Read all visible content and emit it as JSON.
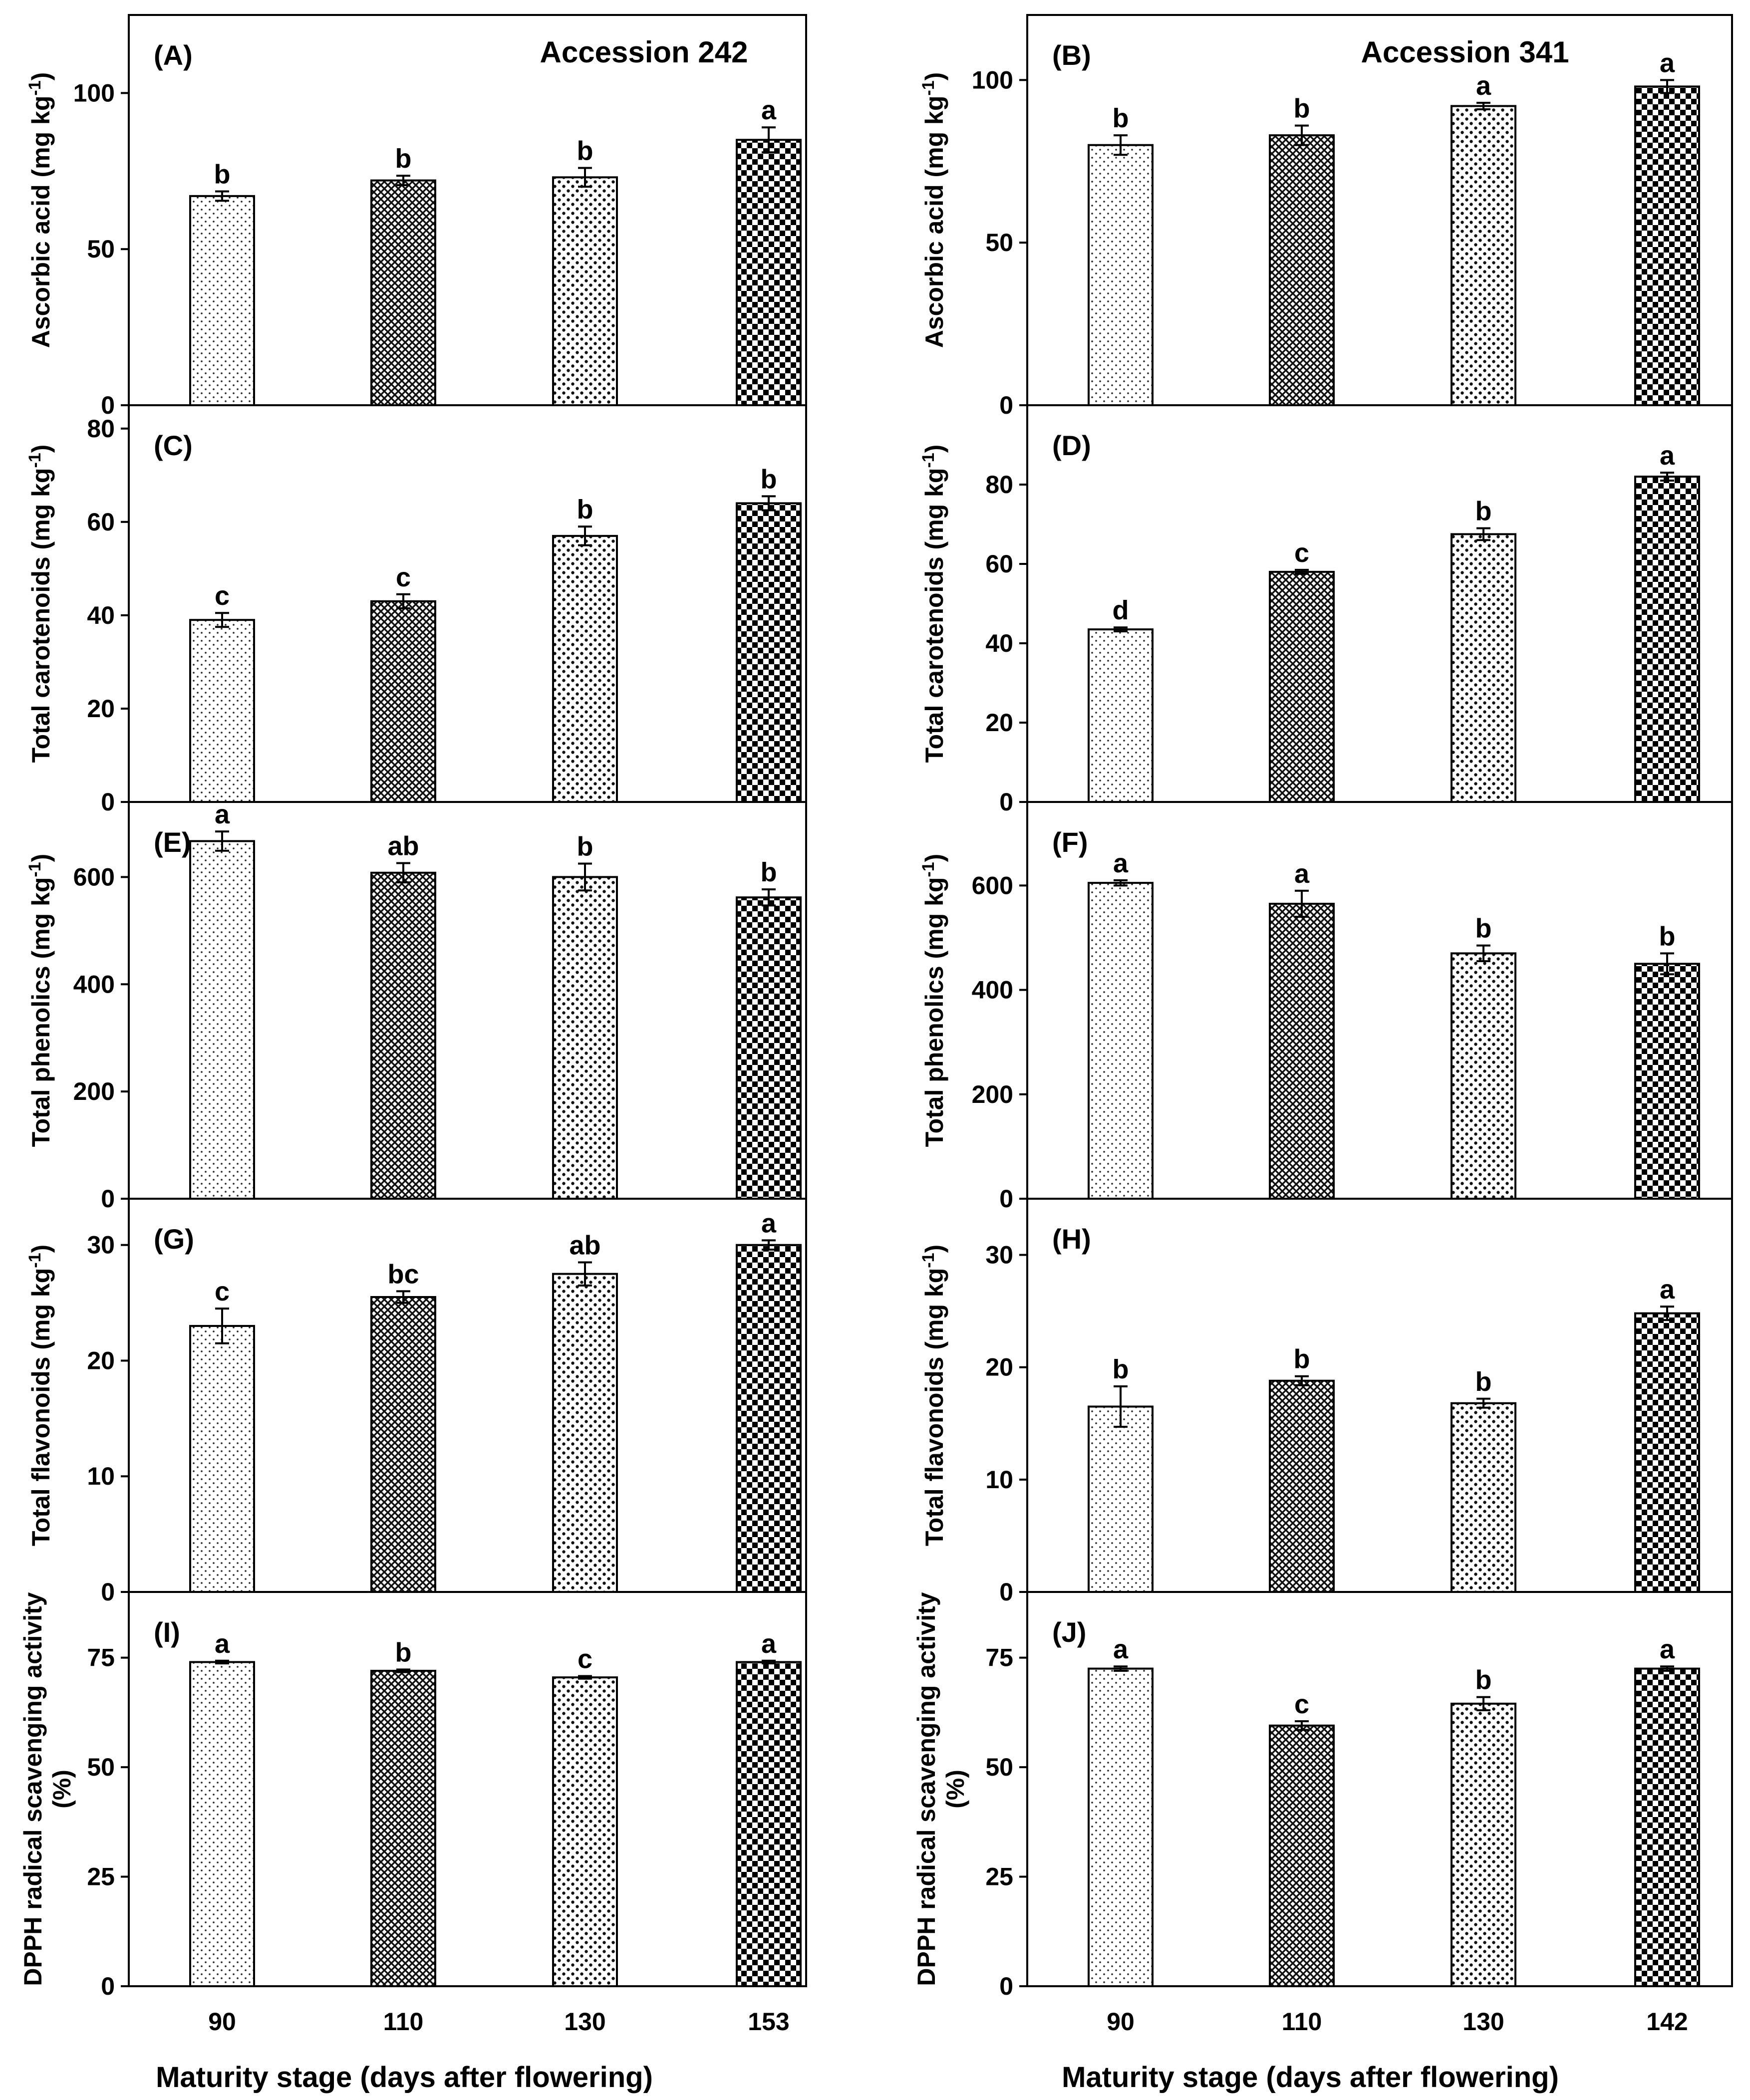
{
  "figure": {
    "xlabel": "Maturity stage (days after flowering)"
  },
  "chart_data": [
    {
      "type": "bar",
      "panel": "(A)",
      "header": "Accession 242",
      "categories": [
        "90",
        "110",
        "130",
        "153"
      ],
      "values": [
        67,
        72,
        73,
        85
      ],
      "errors": [
        1.5,
        1.5,
        3,
        4
      ],
      "letters": [
        "b",
        "b",
        "b",
        "a"
      ],
      "ylabel": "Ascorbic acid (mg kg-1)",
      "ylim": [
        0,
        125
      ],
      "yticks": [
        0,
        50,
        100
      ]
    },
    {
      "type": "bar",
      "panel": "(B)",
      "header": "Accession 341",
      "categories": [
        "90",
        "110",
        "130",
        "142"
      ],
      "values": [
        80,
        83,
        92,
        98
      ],
      "errors": [
        3,
        3,
        1,
        2
      ],
      "letters": [
        "b",
        "b",
        "a",
        "a"
      ],
      "ylabel": "Ascorbic acid (mg kg-1)",
      "ylim": [
        0,
        120
      ],
      "yticks": [
        0,
        50,
        100
      ]
    },
    {
      "type": "bar",
      "panel": "(C)",
      "header": "",
      "categories": [
        "90",
        "110",
        "130",
        "153"
      ],
      "values": [
        39,
        43,
        57,
        64
      ],
      "errors": [
        1.5,
        1.5,
        2,
        1.5
      ],
      "letters": [
        "c",
        "c",
        "b",
        "b"
      ],
      "ylabel": "Total carotenoids (mg kg-1)",
      "ylim": [
        0,
        85
      ],
      "yticks": [
        0,
        20,
        40,
        60,
        80
      ]
    },
    {
      "type": "bar",
      "panel": "(D)",
      "header": "",
      "categories": [
        "90",
        "110",
        "130",
        "142"
      ],
      "values": [
        43.5,
        58,
        67.5,
        82
      ],
      "errors": [
        0.5,
        0.5,
        1.5,
        1
      ],
      "letters": [
        "d",
        "c",
        "b",
        "a"
      ],
      "ylabel": "Total carotenoids (mg kg-1)",
      "ylim": [
        0,
        100
      ],
      "yticks": [
        0,
        20,
        40,
        60,
        80
      ]
    },
    {
      "type": "bar",
      "panel": "(E)",
      "header": "",
      "categories": [
        "90",
        "110",
        "130",
        "153"
      ],
      "values": [
        667,
        608,
        600,
        562
      ],
      "errors": [
        18,
        18,
        25,
        15
      ],
      "letters": [
        "a",
        "ab",
        "b",
        "b"
      ],
      "ylabel": "Total phenolics (mg kg-1)",
      "ylim": [
        0,
        740
      ],
      "yticks": [
        0,
        200,
        400,
        600
      ]
    },
    {
      "type": "bar",
      "panel": "(F)",
      "header": "",
      "categories": [
        "90",
        "110",
        "130",
        "142"
      ],
      "values": [
        605,
        565,
        470,
        450
      ],
      "errors": [
        5,
        25,
        15,
        20
      ],
      "letters": [
        "a",
        "a",
        "b",
        "b"
      ],
      "ylabel": "Total phenolics (mg kg-1)",
      "ylim": [
        0,
        760
      ],
      "yticks": [
        0,
        200,
        400,
        600
      ]
    },
    {
      "type": "bar",
      "panel": "(G)",
      "header": "",
      "categories": [
        "90",
        "110",
        "130",
        "153"
      ],
      "values": [
        23,
        25.5,
        27.5,
        30
      ],
      "errors": [
        1.5,
        0.5,
        1,
        0.4
      ],
      "letters": [
        "c",
        "bc",
        "ab",
        "a"
      ],
      "ylabel": "Total flavonoids (mg kg-1)",
      "ylim": [
        0,
        34
      ],
      "yticks": [
        0,
        10,
        20,
        30
      ]
    },
    {
      "type": "bar",
      "panel": "(H)",
      "header": "",
      "categories": [
        "90",
        "110",
        "130",
        "142"
      ],
      "values": [
        16.5,
        18.8,
        16.8,
        24.8
      ],
      "errors": [
        1.8,
        0.4,
        0.4,
        0.6
      ],
      "letters": [
        "b",
        "b",
        "b",
        "a"
      ],
      "ylabel": "Total flavonoids (mg kg-1)",
      "ylim": [
        0,
        35
      ],
      "yticks": [
        0,
        10,
        20,
        30
      ]
    },
    {
      "type": "bar",
      "panel": "(I)",
      "header": "",
      "categories": [
        "90",
        "110",
        "130",
        "153"
      ],
      "values": [
        74,
        72,
        70.5,
        74
      ],
      "errors": [
        0.3,
        0.3,
        0.3,
        0.3
      ],
      "letters": [
        "a",
        "b",
        "c",
        "a"
      ],
      "ylabel": "DPPH radical scavenging activity (%)",
      "ylim": [
        0,
        90
      ],
      "yticks": [
        0,
        25,
        50,
        75
      ]
    },
    {
      "type": "bar",
      "panel": "(J)",
      "header": "",
      "categories": [
        "90",
        "110",
        "130",
        "142"
      ],
      "values": [
        72.5,
        59.5,
        64.5,
        72.5
      ],
      "errors": [
        0.5,
        1,
        1.5,
        0.5
      ],
      "letters": [
        "a",
        "c",
        "b",
        "a"
      ],
      "ylabel": "DPPH radical scavenging activity (%)",
      "ylim": [
        0,
        90
      ],
      "yticks": [
        0,
        25,
        50,
        75
      ]
    }
  ]
}
